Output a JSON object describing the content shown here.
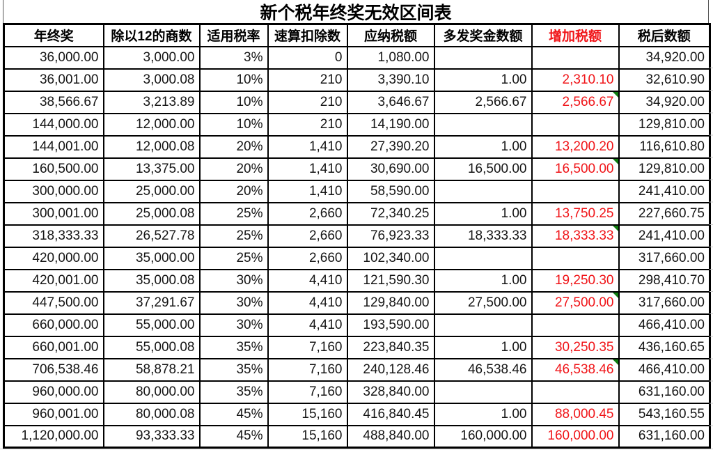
{
  "title": "新个税年终奖无效区间表",
  "colors": {
    "red_text": "#f01418",
    "warning_green": "#107c10",
    "border_black": "#000000",
    "gridline_gray": "#c9c9c9"
  },
  "icons": {
    "formula_warning_triangle": "green corner triangle"
  },
  "table": {
    "red_column_index": 6,
    "columns": [
      "年终奖",
      "除以12的商数",
      "适用税率",
      "速算扣除数",
      "应纳税额",
      "多发奖金数额",
      "增加税额",
      "税后数额"
    ],
    "rows": [
      {
        "cells": [
          "36,000.00",
          "3,000.00",
          "3%",
          "0",
          "1,080.00",
          "",
          "",
          "34,920.00"
        ],
        "warning": false
      },
      {
        "cells": [
          "36,001.00",
          "3,000.08",
          "10%",
          "210",
          "3,390.10",
          "1.00",
          "2,310.10",
          "32,610.90"
        ],
        "warning": false
      },
      {
        "cells": [
          "38,566.67",
          "3,213.89",
          "10%",
          "210",
          "3,646.67",
          "2,566.67",
          "2,566.67",
          "34,920.00"
        ],
        "warning": true
      },
      {
        "cells": [
          "144,000.00",
          "12,000.00",
          "10%",
          "210",
          "14,190.00",
          "",
          "",
          "129,810.00"
        ],
        "warning": false
      },
      {
        "cells": [
          "144,001.00",
          "12,000.08",
          "20%",
          "1,410",
          "27,390.20",
          "1.00",
          "13,200.20",
          "116,610.80"
        ],
        "warning": false
      },
      {
        "cells": [
          "160,500.00",
          "13,375.00",
          "20%",
          "1,410",
          "30,690.00",
          "16,500.00",
          "16,500.00",
          "129,810.00"
        ],
        "warning": true
      },
      {
        "cells": [
          "300,000.00",
          "25,000.00",
          "20%",
          "1,410",
          "58,590.00",
          "",
          "",
          "241,410.00"
        ],
        "warning": false
      },
      {
        "cells": [
          "300,001.00",
          "25,000.08",
          "25%",
          "2,660",
          "72,340.25",
          "1.00",
          "13,750.25",
          "227,660.75"
        ],
        "warning": false
      },
      {
        "cells": [
          "318,333.33",
          "26,527.78",
          "25%",
          "2,660",
          "76,923.33",
          "18,333.33",
          "18,333.33",
          "241,410.00"
        ],
        "warning": true
      },
      {
        "cells": [
          "420,000.00",
          "35,000.00",
          "25%",
          "2,660",
          "102,340.00",
          "",
          "",
          "317,660.00"
        ],
        "warning": false
      },
      {
        "cells": [
          "420,001.00",
          "35,000.08",
          "30%",
          "4,410",
          "121,590.30",
          "1.00",
          "19,250.30",
          "298,410.70"
        ],
        "warning": false
      },
      {
        "cells": [
          "447,500.00",
          "37,291.67",
          "30%",
          "4,410",
          "129,840.00",
          "27,500.00",
          "27,500.00",
          "317,660.00"
        ],
        "warning": true
      },
      {
        "cells": [
          "660,000.00",
          "55,000.00",
          "30%",
          "4,410",
          "193,590.00",
          "",
          "",
          "466,410.00"
        ],
        "warning": false
      },
      {
        "cells": [
          "660,001.00",
          "55,000.08",
          "35%",
          "7,160",
          "223,840.35",
          "1.00",
          "30,250.35",
          "436,160.65"
        ],
        "warning": false
      },
      {
        "cells": [
          "706,538.46",
          "58,878.21",
          "35%",
          "7,160",
          "240,128.46",
          "46,538.46",
          "46,538.46",
          "466,410.00"
        ],
        "warning": true
      },
      {
        "cells": [
          "960,000.00",
          "80,000.00",
          "35%",
          "7,160",
          "328,840.00",
          "",
          "",
          "631,160.00"
        ],
        "warning": false
      },
      {
        "cells": [
          "960,001.00",
          "80,000.08",
          "45%",
          "15,160",
          "416,840.45",
          "1.00",
          "88,000.45",
          "543,160.55"
        ],
        "warning": false
      },
      {
        "cells": [
          "1,120,000.00",
          "93,333.33",
          "45%",
          "15,160",
          "488,840.00",
          "160,000.00",
          "160,000.00",
          "631,160.00"
        ],
        "warning": false
      }
    ]
  }
}
